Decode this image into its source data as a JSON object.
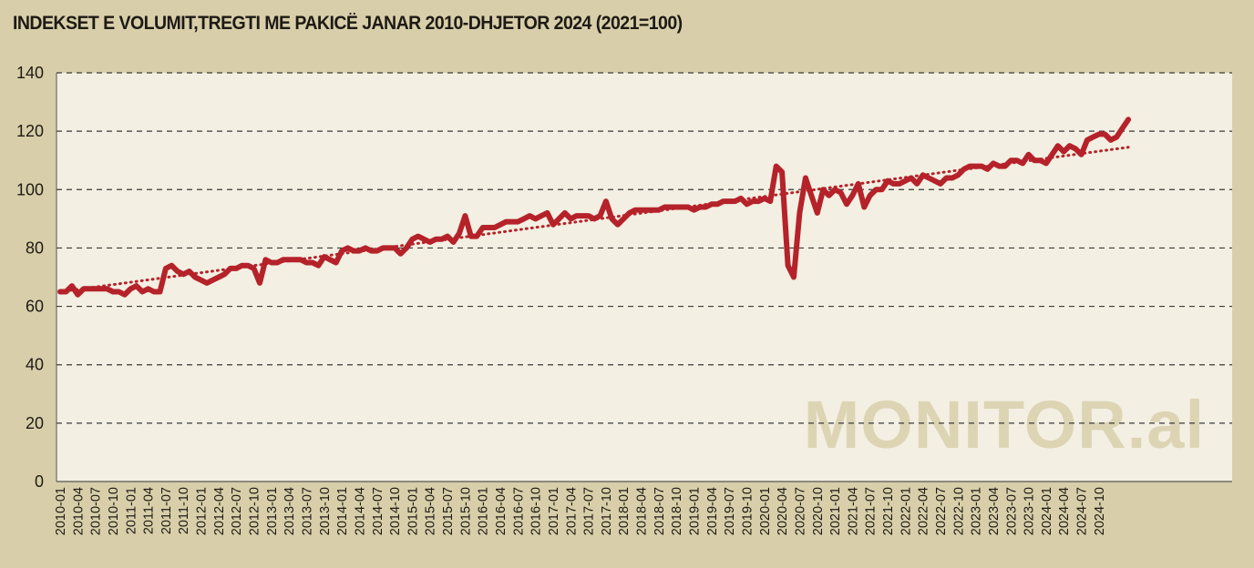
{
  "chart_data": {
    "type": "line",
    "title": "INDEKSET E VOLUMIT,TREGTI ME PAKICË JANAR 2010-DHJETOR 2024 (2021=100)",
    "xlabel": "",
    "ylabel": "",
    "ylim": [
      0,
      140
    ],
    "yticks": [
      0,
      20,
      40,
      60,
      80,
      100,
      120,
      140
    ],
    "grid": "horizontal dashed",
    "legend": "none",
    "x_tick_labels": [
      "2010-01",
      "2010-04",
      "2010-07",
      "2010-10",
      "2011-01",
      "2011-04",
      "2011-07",
      "2011-10",
      "2012-01",
      "2012-04",
      "2012-07",
      "2012-10",
      "2013-01",
      "2013-04",
      "2013-07",
      "2013-10",
      "2014-01",
      "2014-04",
      "2014-07",
      "2014-10",
      "2015-01",
      "2015-04",
      "2015-07",
      "2015-10",
      "2016-01",
      "2016-04",
      "2016-07",
      "2016-10",
      "2017-01",
      "2017-04",
      "2017-07",
      "2017-10",
      "2018-01",
      "2018-04",
      "2018-07",
      "2018-10",
      "2019-01",
      "2019-04",
      "2019-07",
      "2019-10",
      "2020-01",
      "2020-04",
      "2020-07",
      "2020-10",
      "2021-01",
      "2021-04",
      "2021-07",
      "2021-10",
      "2022-01",
      "2022-04",
      "2022-07",
      "2022-10",
      "2023-01",
      "2023-04",
      "2023-07",
      "2023-10",
      "2024-01",
      "2024-04",
      "2024-07",
      "2024-10"
    ],
    "series": [
      {
        "values": [
          65,
          65,
          67,
          64,
          66,
          66,
          66,
          66,
          66,
          65,
          65,
          64,
          66,
          67,
          65,
          66,
          65,
          65,
          73,
          74,
          72,
          71,
          72,
          70,
          69,
          68,
          69,
          70,
          71,
          73,
          73,
          74,
          74,
          73,
          68,
          76,
          75,
          75,
          76,
          76,
          76,
          76,
          75,
          75,
          74,
          77,
          76,
          75,
          79,
          80,
          79,
          79,
          80,
          79,
          79,
          80,
          80,
          80,
          78,
          80,
          83,
          84,
          83,
          82,
          83,
          83,
          84,
          82,
          85,
          91,
          84,
          84,
          87,
          87,
          87,
          88,
          89,
          89,
          89,
          90,
          91,
          90,
          91,
          92,
          88,
          90,
          92,
          90,
          91,
          91,
          91,
          90,
          91,
          96,
          90,
          88,
          90,
          92,
          93,
          93,
          93,
          93,
          93,
          94,
          94,
          94,
          94,
          94,
          93,
          94,
          94,
          95,
          95,
          96,
          96,
          96,
          97,
          95,
          96,
          96,
          97,
          96,
          108,
          106,
          74,
          70,
          92,
          104,
          98,
          92,
          100,
          98,
          100,
          99,
          95,
          98,
          102,
          94,
          98,
          100,
          100,
          103,
          102,
          102,
          103,
          104,
          102,
          105,
          104,
          103,
          102,
          104,
          104,
          105,
          107,
          108,
          108,
          108,
          107,
          109,
          108,
          108,
          110,
          110,
          109,
          112,
          110,
          110,
          109,
          112,
          115,
          113,
          115,
          114,
          112,
          117,
          118,
          119,
          119,
          117,
          118,
          121,
          124
        ],
        "color": "#b5222a"
      }
    ],
    "trend": {
      "start": 65,
      "end": 114.5,
      "color": "#b5222a",
      "style": "dotted"
    },
    "watermark": "MONITOR.al"
  }
}
